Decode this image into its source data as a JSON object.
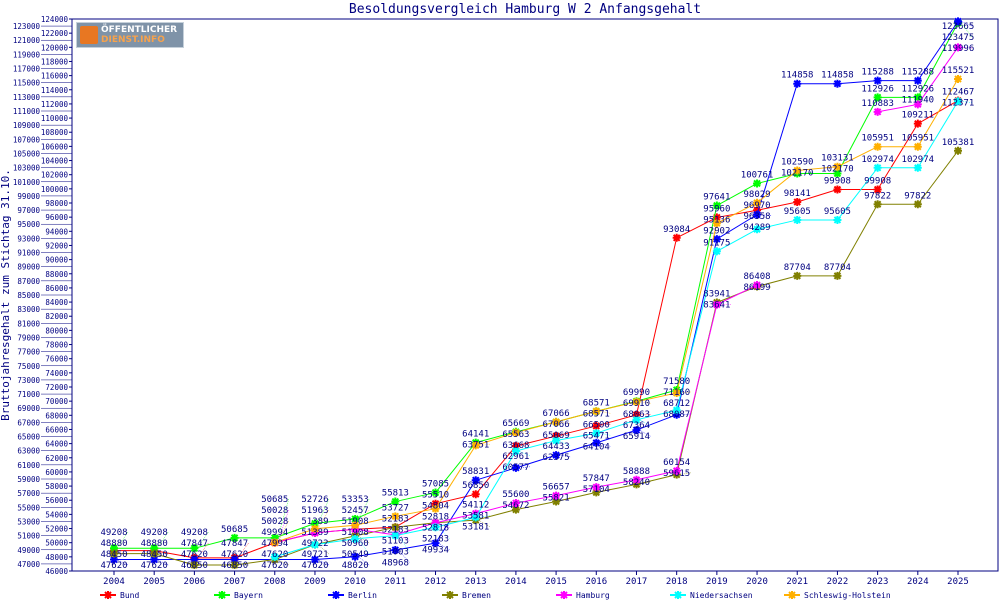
{
  "chart_data": {
    "type": "line",
    "title": "Besoldungsvergleich Hamburg W 2 Anfangsgehalt",
    "xlabel": "",
    "ylabel": "Bruttojahresgehalt zum Stichtag 31.10.",
    "ylim": [
      46000,
      124000
    ],
    "ytick_step": 1000,
    "x": [
      2004,
      2005,
      2006,
      2007,
      2008,
      2009,
      2010,
      2011,
      2012,
      2013,
      2014,
      2015,
      2016,
      2017,
      2018,
      2019,
      2020,
      2021,
      2022,
      2023,
      2024,
      2025
    ],
    "legend_position": "bottom",
    "grid": false,
    "series": [
      {
        "name": "Bund",
        "color": "#ff0000",
        "values": [
          48880,
          48880,
          47847,
          47847,
          49994,
          51389,
          51908,
          52183,
          55510,
          56850,
          63668,
          65069,
          66500,
          68063,
          93084,
          95960,
          96970,
          98141,
          99908,
          99908,
          109211,
          112467
        ]
      },
      {
        "name": "Bayern",
        "color": "#00ff00",
        "values": [
          49208,
          49208,
          49208,
          50685,
          50685,
          52726,
          53353,
          55813,
          57085,
          64141,
          65669,
          67066,
          68571,
          69990,
          71580,
          97641,
          100761,
          102170,
          102170,
          112926,
          112926,
          123475
        ]
      },
      {
        "name": "Berlin",
        "color": "#0000ff",
        "values": [
          47620,
          47620,
          47620,
          47620,
          47620,
          47620,
          48020,
          48968,
          49934,
          58831,
          60577,
          62375,
          64104,
          65914,
          68087,
          92902,
          96358,
          114858,
          114858,
          115288,
          115288,
          123665
        ]
      },
      {
        "name": "Bremen",
        "color": "#808000",
        "values": [
          48450,
          48450,
          46850,
          46850,
          47620,
          49721,
          50960,
          52183,
          52818,
          53181,
          54672,
          55821,
          57104,
          58240,
          59615,
          83941,
          86199,
          87704,
          87704,
          97822,
          97822,
          105381
        ]
      },
      {
        "name": "Hamburg",
        "color": "#ff00ff",
        "values": [
          null,
          null,
          null,
          null,
          50028,
          51389,
          51908,
          51103,
          52818,
          54112,
          55600,
          56657,
          57847,
          58888,
          60154,
          83641,
          86408,
          null,
          null,
          110883,
          111940,
          119996
        ]
      },
      {
        "name": "Niedersachsen",
        "color": "#00ffff",
        "values": [
          null,
          null,
          null,
          null,
          47994,
          49722,
          50549,
          51003,
          52183,
          53581,
          62961,
          64433,
          65471,
          67364,
          68712,
          91175,
          94289,
          95605,
          95605,
          102974,
          102974,
          112371
        ]
      },
      {
        "name": "Schleswig-Holstein",
        "color": "#ffb000",
        "values": [
          null,
          null,
          null,
          null,
          50028,
          51963,
          52457,
          53727,
          54804,
          63751,
          65563,
          67066,
          68571,
          69910,
          71160,
          95136,
          98029,
          102590,
          103131,
          105951,
          105951,
          115521
        ]
      }
    ]
  },
  "logo": {
    "line1": "ÖFFENTLICHER",
    "line2": "DIENST.INFO"
  }
}
